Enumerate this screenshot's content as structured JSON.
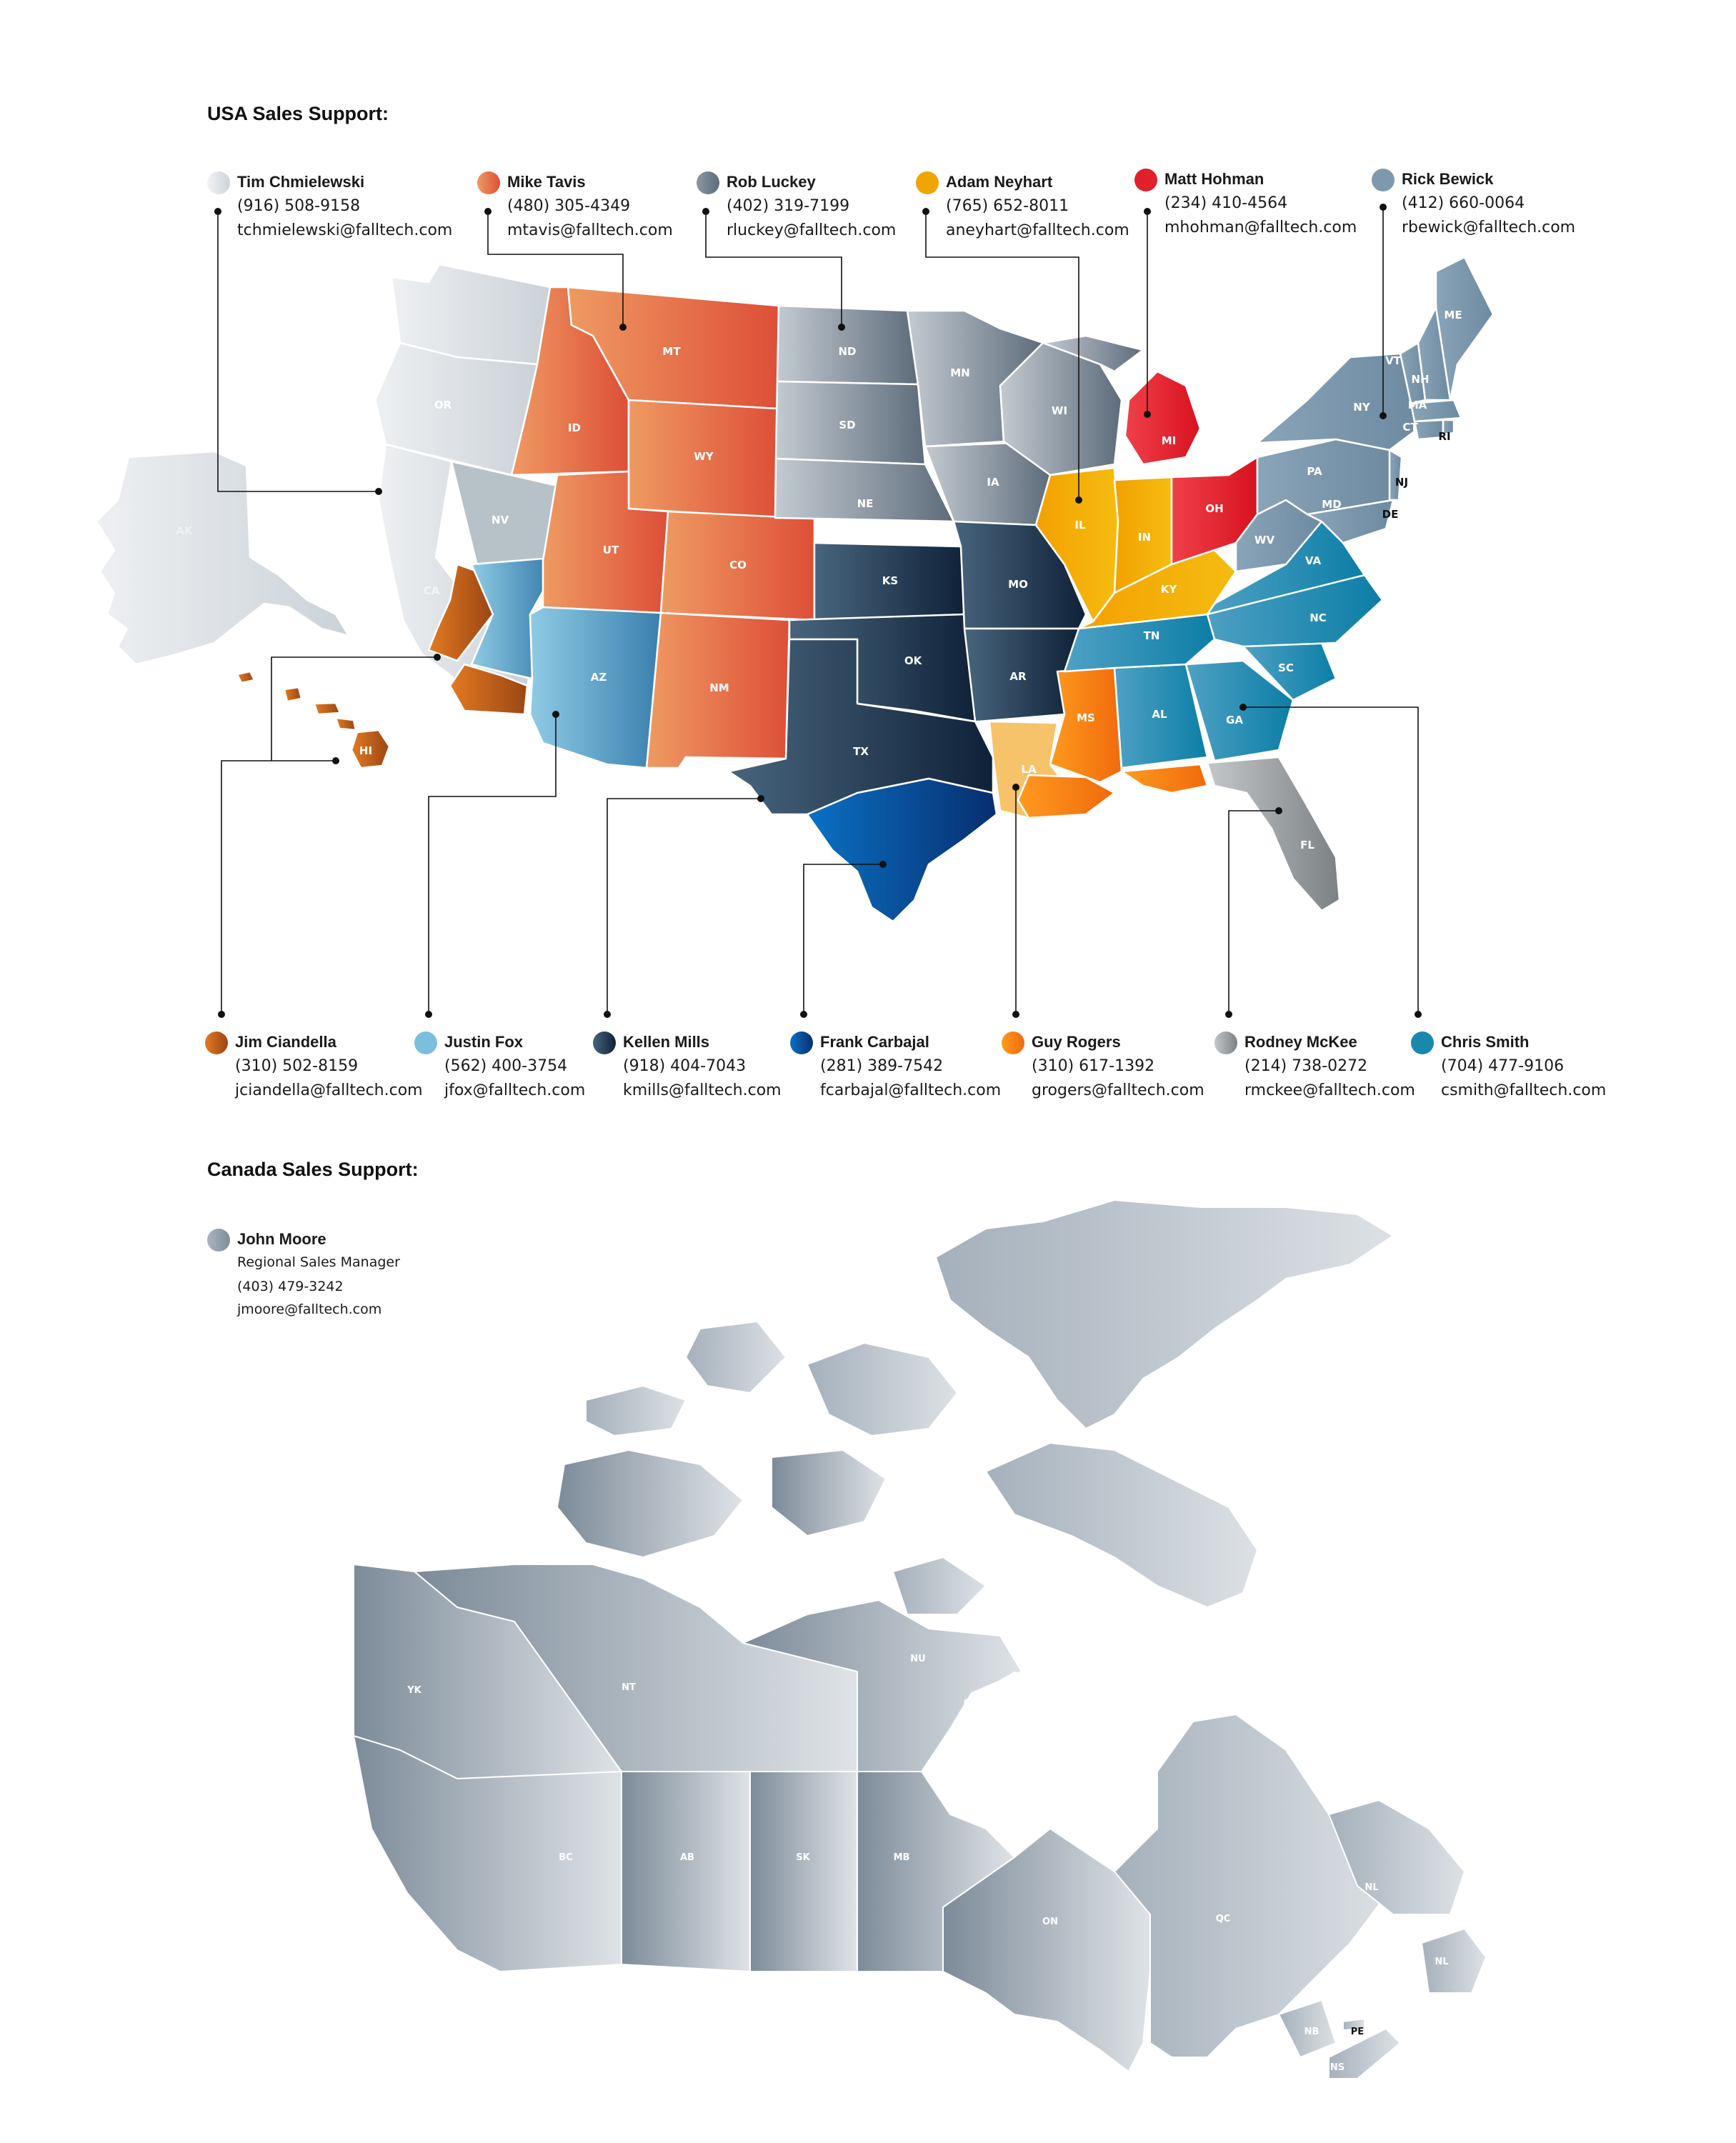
{
  "usa": {
    "title": "USA Sales Support:",
    "reps_top": [
      {
        "name": "Tim Chmielewski",
        "phone": "(916) 508-9158",
        "email": "tchmielewski@falltech.com",
        "color": "#e3e6ea"
      },
      {
        "name": "Mike Tavis",
        "phone": "(480) 305-4349",
        "email": "mtavis@falltech.com",
        "color": "#e4623f"
      },
      {
        "name": "Rob Luckey",
        "phone": "(402) 319-7199",
        "email": "rluckey@falltech.com",
        "color": "#6f7e8c"
      },
      {
        "name": "Adam Neyhart",
        "phone": "(765) 652-8011",
        "email": "aneyhart@falltech.com",
        "color": "#f0a500"
      },
      {
        "name": "Matt Hohman",
        "phone": "(234) 410-4564",
        "email": "mhohman@falltech.com",
        "color": "#e0202a"
      },
      {
        "name": "Rick Bewick",
        "phone": "(412) 660-0064",
        "email": "rbewick@falltech.com",
        "color": "#7e99ad"
      }
    ],
    "reps_bottom": [
      {
        "name": "Jim Ciandella",
        "phone": "(310) 502-8159",
        "email": "jciandella@falltech.com",
        "color": "#c05a1a"
      },
      {
        "name": "Justin Fox",
        "phone": "(562) 400-3754",
        "email": "jfox@falltech.com",
        "color": "#7bbfdc"
      },
      {
        "name": "Kellen Mills",
        "phone": "(918) 404-7043",
        "email": "kmills@falltech.com",
        "color": "#1c3550"
      },
      {
        "name": "Frank Carbajal",
        "phone": "(281) 389-7542",
        "email": "fcarbajal@falltech.com",
        "color": "#0a4c9e"
      },
      {
        "name": "Guy Rogers",
        "phone": "(310) 617-1392",
        "email": "grogers@falltech.com",
        "color": "#f57f15"
      },
      {
        "name": "Rodney McKee",
        "phone": "(214) 738-0272",
        "email": "rmckee@falltech.com",
        "color": "#9a9ea1"
      },
      {
        "name": "Chris Smith",
        "phone": "(704) 477-9106",
        "email": "csmith@falltech.com",
        "color": "#1a88ad"
      }
    ],
    "state_labels": [
      "AK",
      "HI",
      "CA",
      "OR",
      "WA",
      "NV",
      "ID",
      "MT",
      "WY",
      "UT",
      "CO",
      "AZ",
      "NM",
      "ND",
      "SD",
      "NE",
      "KS",
      "OK",
      "TX",
      "MN",
      "IA",
      "MO",
      "AR",
      "LA",
      "MS",
      "AL",
      "GA",
      "FL",
      "SC",
      "NC",
      "TN",
      "KY",
      "IN",
      "IL",
      "WI",
      "MI",
      "OH",
      "PA",
      "NY",
      "VT",
      "NH",
      "ME",
      "MA",
      "CT",
      "RI",
      "NJ",
      "DE",
      "MD",
      "WV",
      "VA"
    ]
  },
  "canada": {
    "title": "Canada Sales Support:",
    "rep": {
      "name": "John Moore",
      "role": "Regional Sales Manager",
      "phone": "(403) 479-3242",
      "email": "jmoore@falltech.com",
      "color": "#9aa7b3"
    },
    "province_labels": [
      "YK",
      "NT",
      "NU",
      "BC",
      "AB",
      "SK",
      "MB",
      "ON",
      "QC",
      "NL",
      "NL",
      "NB",
      "PE",
      "NS"
    ]
  },
  "colors": {
    "tim": "#e3e6ea",
    "mike": "#e4623f",
    "rob": "#6f7e8c",
    "adam": "#f0a500",
    "matt": "#e0202a",
    "rick": "#7e99ad",
    "jim": "#c05a1a",
    "justin": "#7bbfdc",
    "kellen": "#1c3550",
    "frank": "#0a4c9e",
    "guy": "#f57f15",
    "rodney": "#9a9ea1",
    "chris": "#1a88ad",
    "canada_dark": "#7f8d9b",
    "canada_light": "#d8dde2"
  }
}
